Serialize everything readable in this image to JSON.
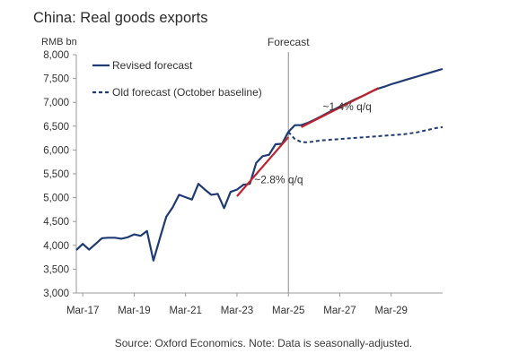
{
  "chart_data": {
    "type": "line",
    "title": "China: Real goods exports",
    "ylabel": "RMB bn",
    "ylim": [
      3000,
      8000
    ],
    "yticks": [
      3000,
      3500,
      4000,
      4500,
      5000,
      5500,
      6000,
      6500,
      7000,
      7500,
      8000
    ],
    "ytick_labels": [
      "3,000",
      "3,500",
      "4,000",
      "4,500",
      "5,000",
      "5,500",
      "6,000",
      "6,500",
      "7,000",
      "7,500",
      "8,000"
    ],
    "x_ticks": [
      "Mar-17",
      "Mar-19",
      "Mar-21",
      "Mar-23",
      "Mar-25",
      "Mar-27",
      "Mar-29"
    ],
    "x_tick_values": [
      "2017Q1",
      "2019Q1",
      "2021Q1",
      "2023Q1",
      "2025Q1",
      "2027Q1",
      "2029Q1"
    ],
    "forecast_label": "Forecast",
    "forecast_start": "2025Q1",
    "legend_position": "top-left",
    "series": [
      {
        "name": "Revised forecast",
        "style": "solid",
        "color": "#1f3b73",
        "points": [
          [
            "2016Q4",
            3900
          ],
          [
            "2017Q1",
            4030
          ],
          [
            "2017Q2",
            3910
          ],
          [
            "2017Q3",
            4030
          ],
          [
            "2017Q4",
            4150
          ],
          [
            "2018Q1",
            4160
          ],
          [
            "2018Q2",
            4160
          ],
          [
            "2018Q3",
            4140
          ],
          [
            "2018Q4",
            4170
          ],
          [
            "2019Q1",
            4230
          ],
          [
            "2019Q2",
            4200
          ],
          [
            "2019Q3",
            4300
          ],
          [
            "2019Q4",
            3680
          ],
          [
            "2020Q1",
            4150
          ],
          [
            "2020Q2",
            4600
          ],
          [
            "2020Q3",
            4800
          ],
          [
            "2020Q4",
            5060
          ],
          [
            "2021Q1",
            5010
          ],
          [
            "2021Q2",
            4960
          ],
          [
            "2021Q3",
            5290
          ],
          [
            "2021Q4",
            5170
          ],
          [
            "2022Q1",
            5060
          ],
          [
            "2022Q2",
            5080
          ],
          [
            "2022Q3",
            4780
          ],
          [
            "2022Q4",
            5120
          ],
          [
            "2023Q1",
            5170
          ],
          [
            "2023Q2",
            5270
          ],
          [
            "2023Q3",
            5290
          ],
          [
            "2023Q4",
            5730
          ],
          [
            "2024Q1",
            5870
          ],
          [
            "2024Q2",
            5900
          ],
          [
            "2024Q3",
            6120
          ],
          [
            "2024Q4",
            6130
          ],
          [
            "2025Q1",
            6380
          ],
          [
            "2025Q2",
            6520
          ],
          [
            "2025Q3",
            6520
          ],
          [
            "2025Q4",
            6570
          ],
          [
            "2026Q1",
            6630
          ],
          [
            "2026Q2",
            6700
          ],
          [
            "2026Q3",
            6770
          ],
          [
            "2026Q4",
            6840
          ],
          [
            "2027Q1",
            6910
          ],
          [
            "2027Q2",
            6970
          ],
          [
            "2027Q3",
            7040
          ],
          [
            "2027Q4",
            7100
          ],
          [
            "2028Q1",
            7160
          ],
          [
            "2028Q2",
            7230
          ],
          [
            "2028Q3",
            7290
          ],
          [
            "2028Q4",
            7330
          ],
          [
            "2029Q1",
            7380
          ],
          [
            "2029Q2",
            7420
          ],
          [
            "2029Q3",
            7460
          ],
          [
            "2029Q4",
            7500
          ],
          [
            "2030Q1",
            7540
          ],
          [
            "2030Q2",
            7580
          ],
          [
            "2030Q3",
            7620
          ],
          [
            "2030Q4",
            7660
          ],
          [
            "2031Q1",
            7700
          ]
        ]
      },
      {
        "name": "Old forecast (October baseline)",
        "style": "dashed",
        "color": "#1f3b73",
        "points": [
          [
            "2025Q1",
            6380
          ],
          [
            "2025Q2",
            6230
          ],
          [
            "2025Q3",
            6170
          ],
          [
            "2025Q4",
            6160
          ],
          [
            "2026Q1",
            6180
          ],
          [
            "2026Q2",
            6200
          ],
          [
            "2026Q3",
            6210
          ],
          [
            "2026Q4",
            6220
          ],
          [
            "2027Q1",
            6230
          ],
          [
            "2027Q2",
            6240
          ],
          [
            "2027Q3",
            6250
          ],
          [
            "2027Q4",
            6260
          ],
          [
            "2028Q1",
            6270
          ],
          [
            "2028Q2",
            6280
          ],
          [
            "2028Q3",
            6290
          ],
          [
            "2028Q4",
            6300
          ],
          [
            "2029Q1",
            6310
          ],
          [
            "2029Q2",
            6320
          ],
          [
            "2029Q3",
            6330
          ],
          [
            "2029Q4",
            6350
          ],
          [
            "2030Q1",
            6370
          ],
          [
            "2030Q2",
            6400
          ],
          [
            "2030Q3",
            6430
          ],
          [
            "2030Q4",
            6460
          ],
          [
            "2031Q1",
            6480
          ]
        ]
      }
    ],
    "trend_lines": [
      {
        "label": "~2.8% q/q",
        "color": "#c0232d",
        "from": [
          "2023Q1",
          5030
        ],
        "to": [
          "2025Q1",
          6270
        ]
      },
      {
        "label": "~1.4% q/q",
        "color": "#c0232d",
        "from": [
          "2025Q3",
          6480
        ],
        "to": [
          "2028Q3",
          7300
        ]
      }
    ]
  },
  "source_note": "Source: Oxford Economics. Note: Data is seasonally-adjusted."
}
